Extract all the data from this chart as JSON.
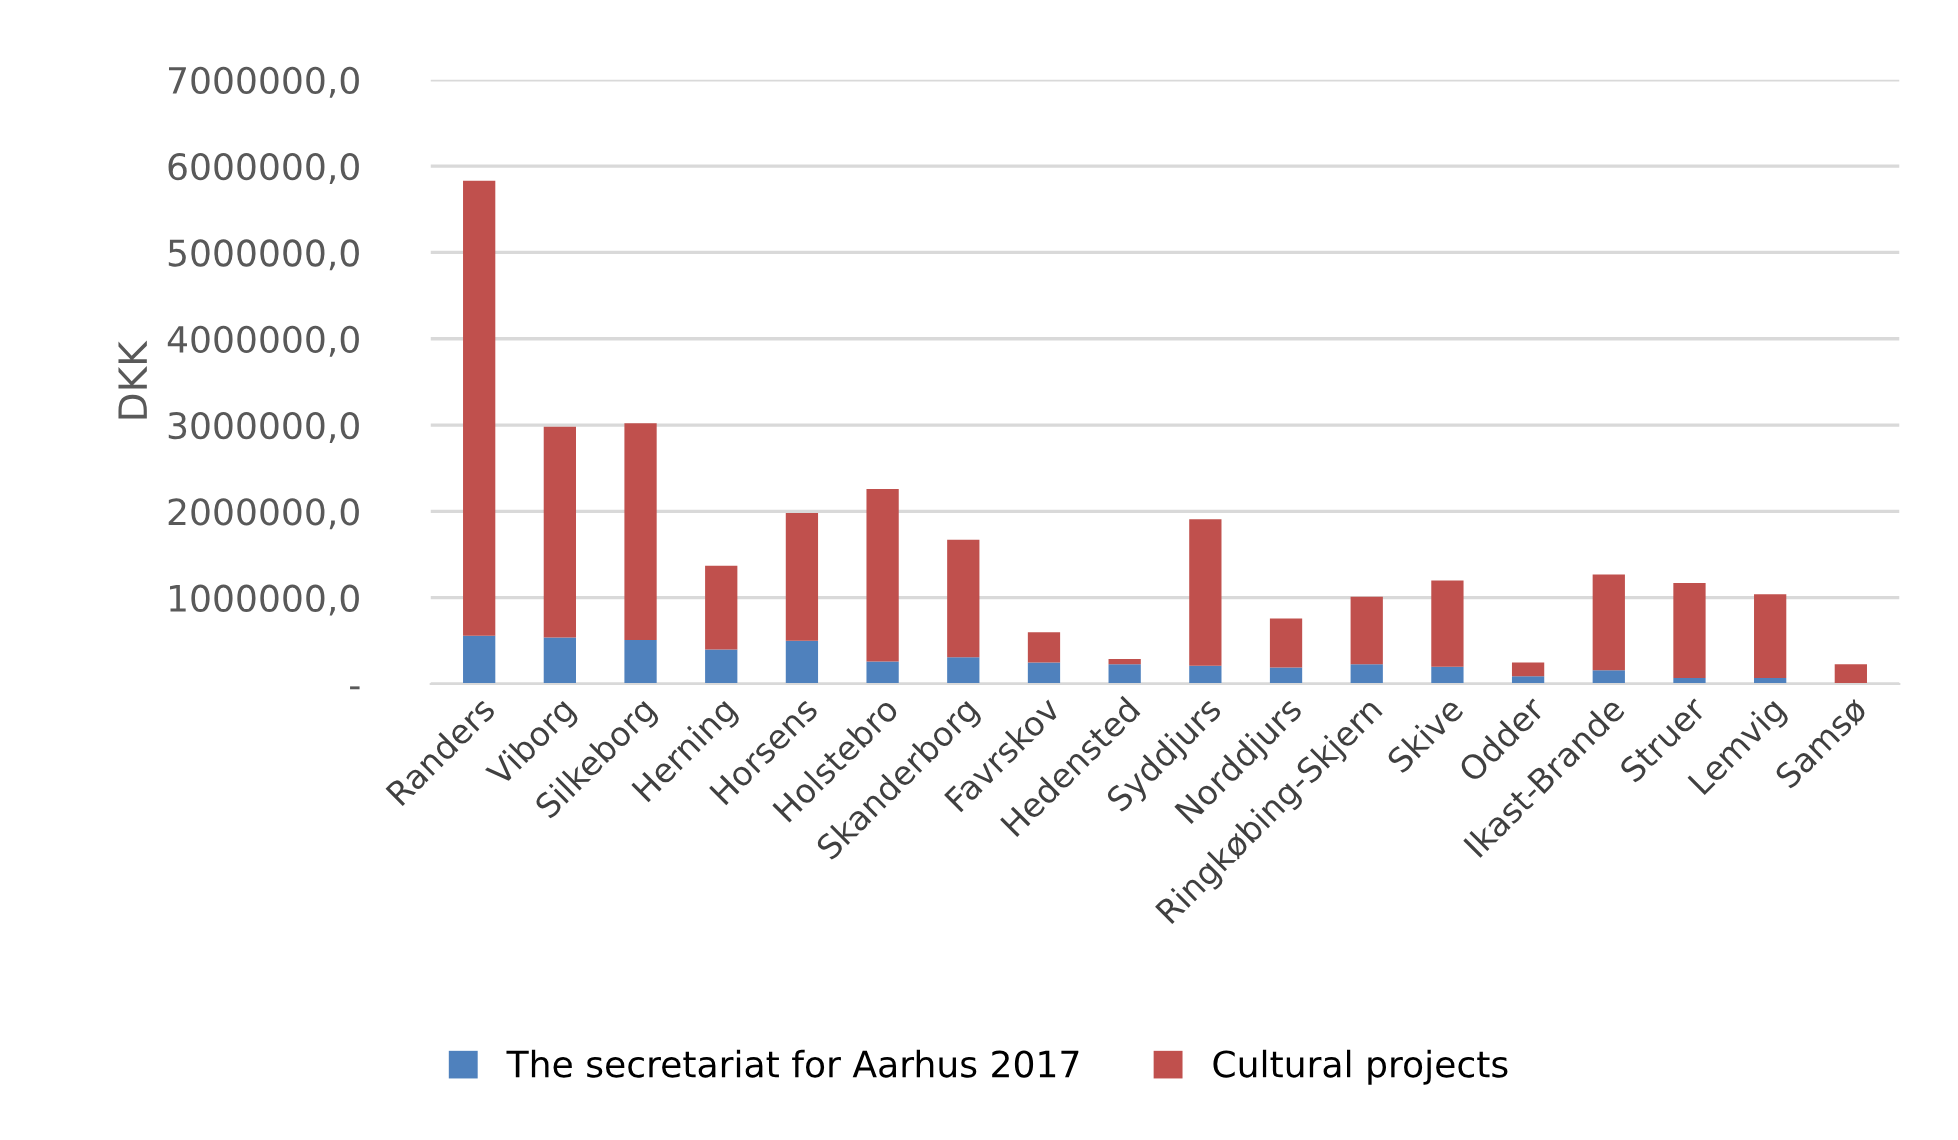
{
  "chart_data": {
    "type": "bar",
    "stacked": true,
    "ylabel": "DKK",
    "categories": [
      "Randers",
      "Viborg",
      "Silkeborg",
      "Herning",
      "Horsens",
      "Holstebro",
      "Skanderborg",
      "Favrskov",
      "Hedensted",
      "Syddjurs",
      "Norddjurs",
      "Ringkøbing-Skjern",
      "Skive",
      "Odder",
      "Ikast-Brande",
      "Struer",
      "Lemvig",
      "Samsø"
    ],
    "series": [
      {
        "name": "The secretariat for Aarhus 2017",
        "color": "#4f81bd",
        "values": [
          560000,
          540000,
          510000,
          400000,
          500000,
          260000,
          310000,
          250000,
          230000,
          210000,
          190000,
          230000,
          200000,
          90000,
          160000,
          70000,
          70000,
          0
        ]
      },
      {
        "name": "Cultural projects",
        "color": "#c0504d",
        "values": [
          5270000,
          2440000,
          2510000,
          970000,
          1480000,
          2000000,
          1360000,
          350000,
          60000,
          1700000,
          570000,
          780000,
          1000000,
          160000,
          1110000,
          1100000,
          970000,
          230000
        ]
      }
    ],
    "ylim": [
      0,
      7000000
    ],
    "yticks": [
      {
        "value": 0,
        "label": "-"
      },
      {
        "value": 1000000,
        "label": "1000000,0"
      },
      {
        "value": 2000000,
        "label": "2000000,0"
      },
      {
        "value": 3000000,
        "label": "3000000,0"
      },
      {
        "value": 4000000,
        "label": "4000000,0"
      },
      {
        "value": 5000000,
        "label": "5000000,0"
      },
      {
        "value": 6000000,
        "label": "6000000,0"
      },
      {
        "value": 7000000,
        "label": "7000000,0"
      }
    ],
    "grid": "y",
    "legend": "bottom"
  }
}
